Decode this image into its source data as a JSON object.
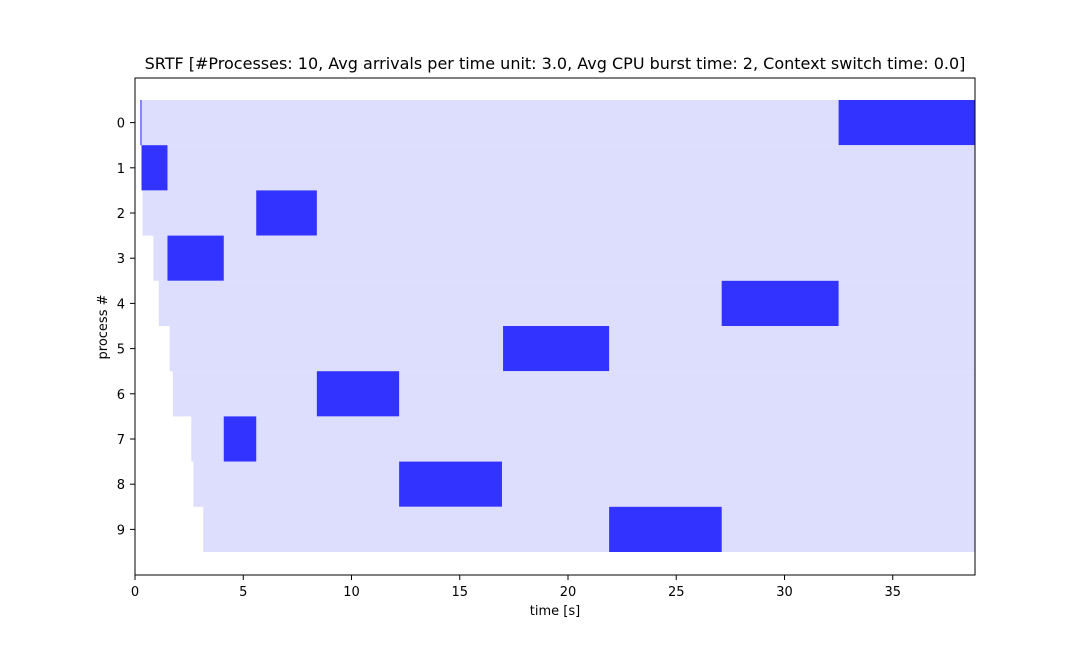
{
  "chart_data": {
    "type": "gantt",
    "title": "SRTF [#Processes: 10, Avg arrivals per time unit: 3.0, Avg CPU burst time: 2, Context switch time: 0.0]",
    "xlabel": "time [s]",
    "ylabel": "process #",
    "xlim": [
      0,
      38.8
    ],
    "xticks": [
      0,
      5,
      10,
      15,
      20,
      25,
      30,
      35
    ],
    "yticks": [
      0,
      1,
      2,
      3,
      4,
      5,
      6,
      7,
      8,
      9
    ],
    "wait_color": "#ddddfd",
    "run_color": "#3333ff",
    "processes": [
      {
        "id": 0,
        "arrival": 0.25,
        "end": 38.8,
        "runs": [
          [
            0.25,
            0.3
          ],
          [
            32.5,
            38.8
          ]
        ]
      },
      {
        "id": 1,
        "arrival": 0.3,
        "end": 38.8,
        "runs": [
          [
            0.3,
            1.5
          ]
        ]
      },
      {
        "id": 2,
        "arrival": 0.35,
        "end": 38.8,
        "runs": [
          [
            5.6,
            8.4
          ]
        ]
      },
      {
        "id": 3,
        "arrival": 0.85,
        "end": 38.8,
        "runs": [
          [
            1.5,
            4.1
          ]
        ]
      },
      {
        "id": 4,
        "arrival": 1.1,
        "end": 38.8,
        "runs": [
          [
            27.1,
            32.5
          ]
        ]
      },
      {
        "id": 5,
        "arrival": 1.6,
        "end": 38.8,
        "runs": [
          [
            17.0,
            21.9
          ]
        ]
      },
      {
        "id": 6,
        "arrival": 1.75,
        "end": 38.8,
        "runs": [
          [
            8.4,
            12.2
          ]
        ]
      },
      {
        "id": 7,
        "arrival": 2.6,
        "end": 38.8,
        "runs": [
          [
            4.1,
            5.6
          ]
        ]
      },
      {
        "id": 8,
        "arrival": 2.7,
        "end": 38.8,
        "runs": [
          [
            12.2,
            16.95
          ]
        ]
      },
      {
        "id": 9,
        "arrival": 3.15,
        "end": 38.8,
        "runs": [
          [
            21.9,
            27.1
          ]
        ]
      }
    ]
  }
}
